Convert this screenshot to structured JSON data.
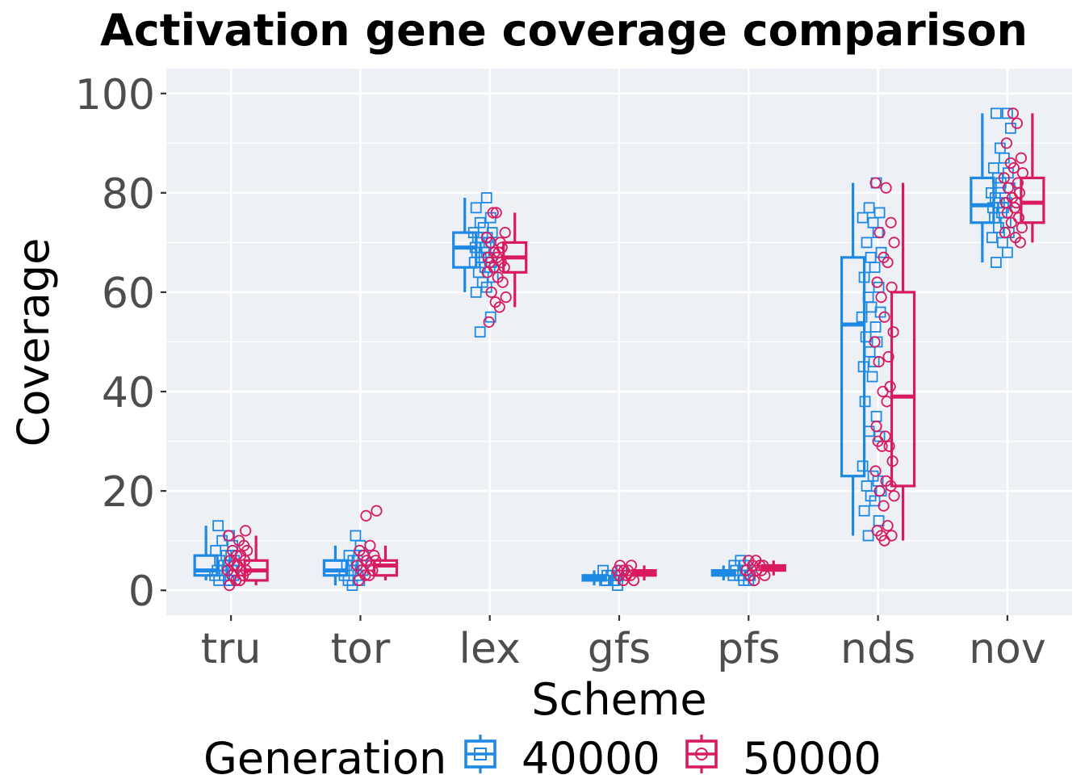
{
  "chart_data": {
    "type": "box",
    "title": "Activation gene coverage comparison",
    "xlabel": "Scheme",
    "ylabel": "Coverage",
    "categories": [
      "tru",
      "tor",
      "lex",
      "gfs",
      "pfs",
      "nds",
      "nov"
    ],
    "ylim": [
      -5,
      105
    ],
    "yticks": [
      0,
      20,
      40,
      60,
      80,
      100
    ],
    "grid": true,
    "legend": {
      "title": "Generation",
      "position": "bottom"
    },
    "series": [
      {
        "name": "40000",
        "color": "#1e88e5",
        "marker": "square",
        "boxes": [
          {
            "min": 2,
            "q1": 3,
            "median": 4,
            "q3": 7,
            "max": 13
          },
          {
            "min": 1,
            "q1": 3,
            "median": 4,
            "q3": 6,
            "max": 9
          },
          {
            "min": 60,
            "q1": 65,
            "median": 69,
            "q3": 72,
            "max": 79
          },
          {
            "min": 1,
            "q1": 2,
            "median": 2.5,
            "q3": 3,
            "max": 4
          },
          {
            "min": 2,
            "q1": 3,
            "median": 3.5,
            "q3": 4,
            "max": 5
          },
          {
            "min": 11,
            "q1": 23,
            "median": 53.5,
            "q3": 67,
            "max": 82
          },
          {
            "min": 66,
            "q1": 74,
            "median": 77.5,
            "q3": 83,
            "max": 96
          }
        ],
        "points": [
          [
            13,
            11,
            10,
            9,
            8,
            7,
            7,
            6,
            6,
            5,
            5,
            4,
            4,
            4,
            3,
            3,
            3,
            2,
            2,
            2
          ],
          [
            11,
            9,
            7,
            7,
            6,
            6,
            5,
            5,
            4,
            4,
            4,
            3,
            3,
            2,
            2,
            1
          ],
          [
            79,
            77,
            75,
            74,
            73,
            72,
            72,
            71,
            71,
            70,
            70,
            69,
            69,
            68,
            68,
            67,
            67,
            66,
            66,
            65,
            65,
            64,
            63,
            62,
            61,
            60,
            55,
            52
          ],
          [
            4,
            4,
            3,
            3,
            3,
            3,
            2,
            2,
            2,
            2,
            1
          ],
          [
            6,
            5,
            5,
            4,
            4,
            4,
            3,
            3,
            3,
            2,
            2
          ],
          [
            82,
            77,
            76,
            75,
            74,
            72,
            70,
            68,
            67,
            65,
            63,
            61,
            59,
            57,
            56,
            55,
            53,
            51,
            50,
            48,
            46,
            45,
            43,
            38,
            35,
            32,
            31,
            25,
            23,
            22,
            21,
            20,
            19,
            18,
            16,
            14,
            11
          ],
          [
            96,
            96,
            93,
            89,
            87,
            85,
            84,
            83,
            82,
            81,
            80,
            79,
            79,
            78,
            78,
            77,
            77,
            76,
            75,
            74,
            73,
            72,
            71,
            70,
            68,
            66
          ]
        ]
      },
      {
        "name": "50000",
        "color": "#d81b60",
        "marker": "circle",
        "boxes": [
          {
            "min": 1,
            "q1": 2,
            "median": 4,
            "q3": 6,
            "max": 11
          },
          {
            "min": 2,
            "q1": 3,
            "median": 5,
            "q3": 6,
            "max": 9
          },
          {
            "min": 57,
            "q1": 64,
            "median": 67,
            "q3": 70,
            "max": 76
          },
          {
            "min": 2,
            "q1": 3,
            "median": 3.5,
            "q3": 4,
            "max": 5
          },
          {
            "min": 3,
            "q1": 4,
            "median": 4.5,
            "q3": 5,
            "max": 6
          },
          {
            "min": 10,
            "q1": 21,
            "median": 39,
            "q3": 60,
            "max": 82
          },
          {
            "min": 70,
            "q1": 74,
            "median": 78,
            "q3": 83,
            "max": 96
          }
        ],
        "points": [
          [
            12,
            11,
            10,
            9,
            8,
            8,
            7,
            7,
            6,
            6,
            5,
            5,
            4,
            4,
            4,
            3,
            3,
            2,
            2,
            1
          ],
          [
            16,
            15,
            9,
            8,
            7,
            7,
            6,
            6,
            5,
            5,
            4,
            4,
            3,
            3,
            2
          ],
          [
            76,
            76,
            72,
            71,
            70,
            70,
            69,
            68,
            68,
            67,
            67,
            66,
            66,
            65,
            65,
            64,
            63,
            62,
            60,
            59,
            58,
            57,
            54
          ],
          [
            5,
            5,
            4,
            4,
            4,
            3,
            3,
            3,
            2,
            2
          ],
          [
            6,
            6,
            5,
            5,
            5,
            4,
            4,
            4,
            3,
            3,
            2
          ],
          [
            82,
            81,
            74,
            72,
            70,
            67,
            66,
            62,
            61,
            59,
            55,
            52,
            50,
            47,
            46,
            41,
            40,
            38,
            33,
            31,
            30,
            29,
            29,
            26,
            24,
            22,
            21,
            20,
            19,
            17,
            13,
            12,
            11,
            11,
            10
          ],
          [
            96,
            94,
            90,
            87,
            86,
            85,
            84,
            83,
            82,
            81,
            80,
            79,
            78,
            78,
            77,
            76,
            75,
            74,
            73,
            72,
            71,
            70
          ]
        ]
      }
    ]
  }
}
